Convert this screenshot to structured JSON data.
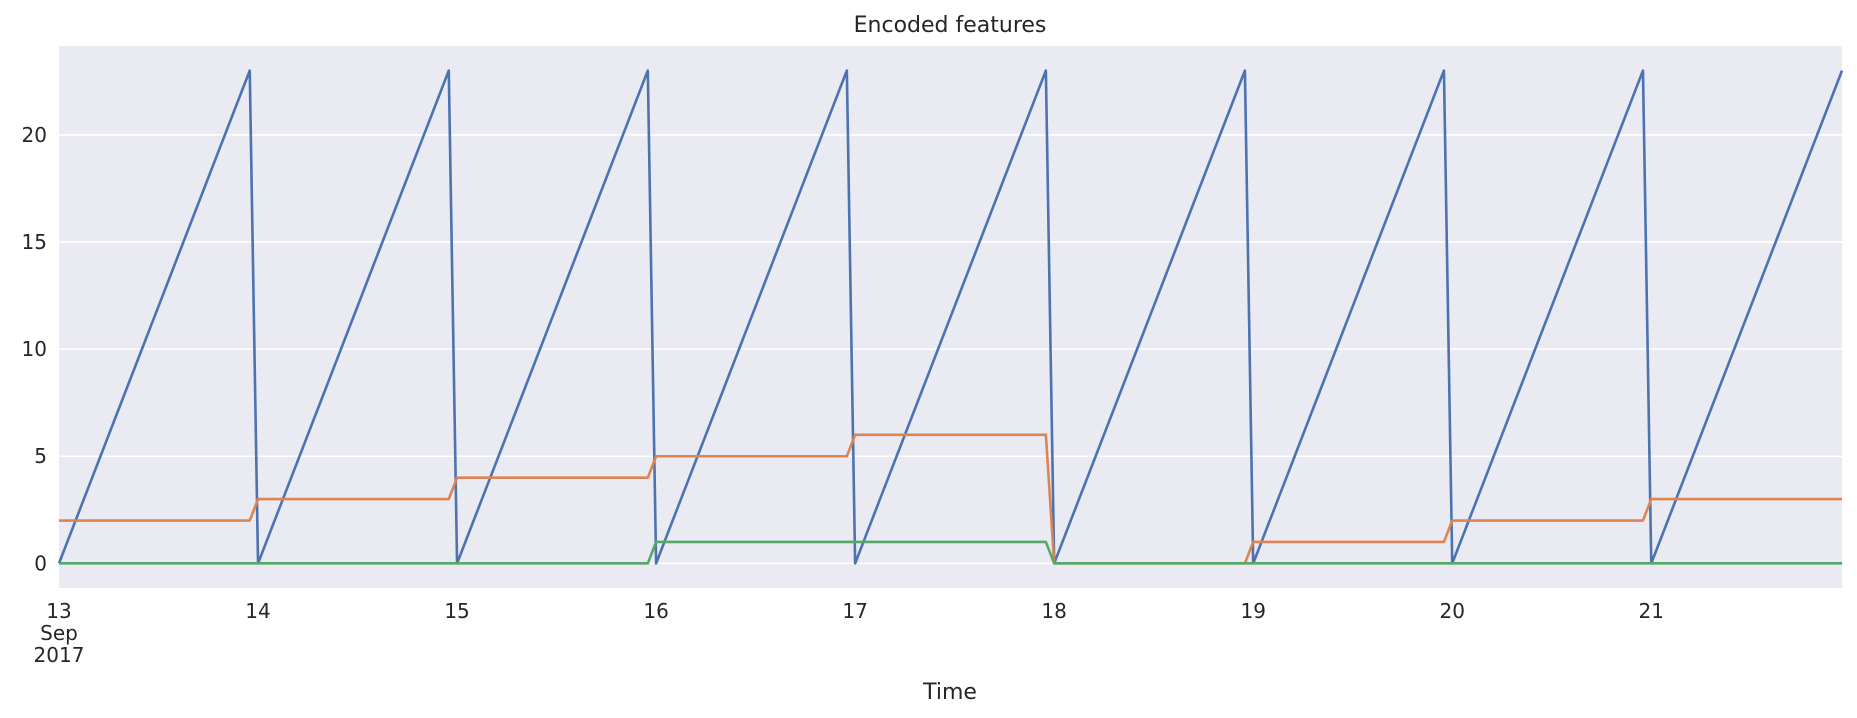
{
  "chart_data": {
    "type": "line",
    "title": "Encoded features",
    "xlabel": "Time",
    "ylabel": "",
    "x_start": "2017-09-13 00:00",
    "x_end": "2017-09-21 23:00",
    "x_ticks": [
      {
        "date": "2017-09-13",
        "label": "13",
        "sublabels": [
          "Sep",
          "2017"
        ]
      },
      {
        "date": "2017-09-14",
        "label": "14",
        "sublabels": []
      },
      {
        "date": "2017-09-15",
        "label": "15",
        "sublabels": []
      },
      {
        "date": "2017-09-16",
        "label": "16",
        "sublabels": []
      },
      {
        "date": "2017-09-17",
        "label": "17",
        "sublabels": []
      },
      {
        "date": "2017-09-18",
        "label": "18",
        "sublabels": []
      },
      {
        "date": "2017-09-19",
        "label": "19",
        "sublabels": []
      },
      {
        "date": "2017-09-20",
        "label": "20",
        "sublabels": []
      },
      {
        "date": "2017-09-21",
        "label": "21",
        "sublabels": []
      }
    ],
    "y_ticks": [
      0,
      5,
      10,
      15,
      20
    ],
    "ylim": [
      -1.15,
      24.15
    ],
    "grid": true,
    "legend": "none",
    "background_color": "#eaeaf2",
    "series": [
      {
        "color": "#4c72b0",
        "frequency": "hourly",
        "pattern": "hour of day",
        "values_per_day": [
          0,
          1,
          2,
          3,
          4,
          5,
          6,
          7,
          8,
          9,
          10,
          11,
          12,
          13,
          14,
          15,
          16,
          17,
          18,
          19,
          20,
          21,
          22,
          23
        ]
      },
      {
        "color": "#dd8452",
        "frequency": "daily",
        "dates": [
          "2017-09-13",
          "2017-09-14",
          "2017-09-15",
          "2017-09-16",
          "2017-09-17",
          "2017-09-18",
          "2017-09-19",
          "2017-09-20",
          "2017-09-21"
        ],
        "values": [
          2,
          3,
          4,
          5,
          6,
          0,
          1,
          2,
          3
        ]
      },
      {
        "color": "#55a868",
        "frequency": "daily",
        "dates": [
          "2017-09-13",
          "2017-09-14",
          "2017-09-15",
          "2017-09-16",
          "2017-09-17",
          "2017-09-18",
          "2017-09-19",
          "2017-09-20",
          "2017-09-21"
        ],
        "values": [
          0,
          0,
          0,
          1,
          1,
          0,
          0,
          0,
          0
        ]
      }
    ]
  }
}
